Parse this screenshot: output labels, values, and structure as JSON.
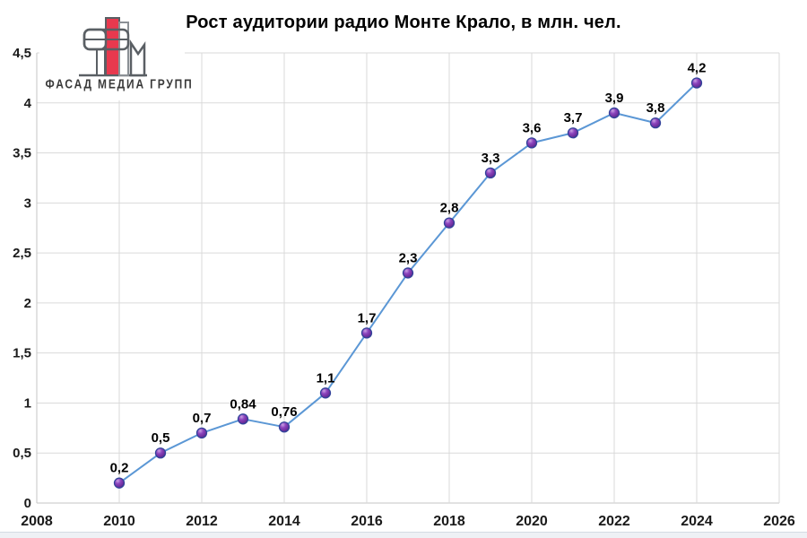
{
  "page": {
    "background": "#ffffff"
  },
  "logo": {
    "text": "ФАСАД МЕДИА ГРУПП",
    "accent_color": "#e8394e",
    "outline_color": "#5a5f64"
  },
  "chart_data": {
    "type": "line",
    "title": "Рост аудитории радио Монте Крало, в млн. чел.",
    "x": [
      2010,
      2011,
      2012,
      2013,
      2014,
      2015,
      2016,
      2017,
      2018,
      2019,
      2020,
      2021,
      2022,
      2023,
      2024
    ],
    "values": [
      0.2,
      0.5,
      0.7,
      0.84,
      0.76,
      1.1,
      1.7,
      2.3,
      2.8,
      3.3,
      3.6,
      3.7,
      3.9,
      3.8,
      4.2
    ],
    "point_labels": [
      "0,2",
      "0,5",
      "0,7",
      "0,84",
      "0,76",
      "1,1",
      "1,7",
      "2,3",
      "2,8",
      "3,3",
      "3,6",
      "3,7",
      "3,9",
      "3,8",
      "4,2"
    ],
    "xlabel": "",
    "ylabel": "",
    "xlim": [
      2008,
      2026
    ],
    "ylim": [
      0,
      4.5
    ],
    "x_ticks": [
      2008,
      2010,
      2012,
      2014,
      2016,
      2018,
      2020,
      2022,
      2024,
      2026
    ],
    "x_tick_labels": [
      "2008",
      "2010",
      "2012",
      "2014",
      "2016",
      "2018",
      "2020",
      "2022",
      "2024",
      "2026"
    ],
    "y_ticks": [
      0,
      0.5,
      1,
      1.5,
      2,
      2.5,
      3,
      3.5,
      4,
      4.5
    ],
    "y_tick_labels": [
      "0",
      "0,5",
      "1",
      "1,5",
      "2",
      "2,5",
      "3",
      "3,5",
      "4",
      "4,5"
    ],
    "grid": true,
    "legend": "none",
    "colors": {
      "line": "#5b97d5",
      "marker_fill": "#7a35ab",
      "marker_edge": "#33439b",
      "gridline": "#dadada",
      "axis_line": "#c6c6c6",
      "tick_label": "#1a1a1a",
      "data_label": "#000000"
    }
  }
}
